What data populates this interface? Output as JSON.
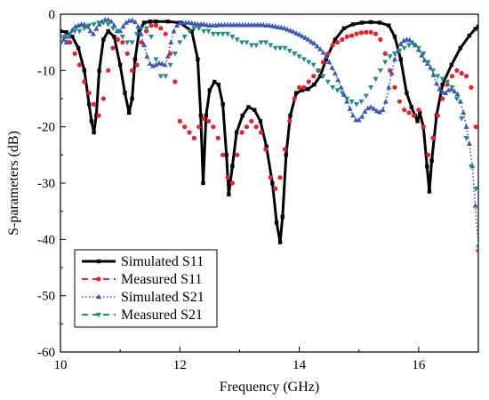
{
  "chart_data": {
    "type": "line",
    "xlabel": "Frequency (GHz)",
    "ylabel": "S-parameters (dB)",
    "xlim": [
      10,
      17
    ],
    "ylim": [
      -60,
      0
    ],
    "xticks": [
      10,
      12,
      14,
      16
    ],
    "yticks": [
      0,
      -10,
      -20,
      -30,
      -40,
      -50,
      -60
    ],
    "grid": false,
    "legend_position": "bottom-left",
    "series": [
      {
        "name": "Simulated S11",
        "color": "#000000",
        "style": "solid-square",
        "x": [
          10.0,
          10.1,
          10.2,
          10.3,
          10.4,
          10.48,
          10.52,
          10.56,
          10.6,
          10.65,
          10.72,
          10.8,
          10.9,
          11.0,
          11.08,
          11.15,
          11.2,
          11.25,
          11.32,
          11.4,
          11.5,
          11.6,
          11.8,
          12.0,
          12.2,
          12.3,
          12.35,
          12.39,
          12.44,
          12.5,
          12.58,
          12.65,
          12.72,
          12.78,
          12.82,
          12.88,
          12.95,
          13.05,
          13.15,
          13.25,
          13.35,
          13.45,
          13.55,
          13.62,
          13.68,
          13.72,
          13.78,
          13.85,
          13.95,
          14.05,
          14.15,
          14.25,
          14.35,
          14.45,
          14.6,
          14.75,
          14.9,
          15.05,
          15.2,
          15.35,
          15.5,
          15.6,
          15.7,
          15.8,
          15.88,
          15.94,
          15.98,
          16.02,
          16.08,
          16.14,
          16.18,
          16.22,
          16.3,
          16.4,
          16.55,
          16.7,
          16.85,
          16.95,
          17.0
        ],
        "y": [
          -3,
          -3.2,
          -4,
          -6,
          -10,
          -16,
          -19,
          -21,
          -18,
          -10,
          -4.5,
          -3,
          -4,
          -9,
          -14,
          -17.5,
          -15,
          -8,
          -3,
          -1.5,
          -1.3,
          -1.3,
          -1.3,
          -1.5,
          -3,
          -8,
          -18,
          -30,
          -18,
          -13.5,
          -12,
          -12.5,
          -16,
          -25,
          -32,
          -27,
          -21,
          -18,
          -16.5,
          -17,
          -19,
          -23.5,
          -30,
          -37,
          -40.5,
          -36,
          -25,
          -18,
          -14,
          -13.5,
          -13.3,
          -12.5,
          -11,
          -8,
          -4.5,
          -2.5,
          -1.8,
          -1.5,
          -1.4,
          -1.5,
          -2,
          -4,
          -8,
          -14,
          -16.5,
          -18,
          -19,
          -17.5,
          -20,
          -27,
          -31.5,
          -26,
          -18,
          -12.5,
          -9,
          -6,
          -3.8,
          -2.6,
          -2.2
        ]
      },
      {
        "name": "Measured S11",
        "color": "#e8202a",
        "style": "dashed-circle",
        "x": [
          10.0,
          10.08,
          10.16,
          10.24,
          10.32,
          10.4,
          10.48,
          10.56,
          10.64,
          10.72,
          10.8,
          10.88,
          10.96,
          11.04,
          11.12,
          11.2,
          11.28,
          11.36,
          11.44,
          11.52,
          11.6,
          11.68,
          11.76,
          11.84,
          11.92,
          12.0,
          12.08,
          12.16,
          12.24,
          12.32,
          12.4,
          12.48,
          12.56,
          12.64,
          12.72,
          12.8,
          12.88,
          12.96,
          13.04,
          13.12,
          13.2,
          13.28,
          13.36,
          13.44,
          13.52,
          13.6,
          13.68,
          13.76,
          13.84,
          13.92,
          14.0,
          14.08,
          14.16,
          14.24,
          14.32,
          14.4,
          14.48,
          14.56,
          14.64,
          14.72,
          14.8,
          14.88,
          14.96,
          15.04,
          15.12,
          15.2,
          15.28,
          15.36,
          15.44,
          15.52,
          15.6,
          15.68,
          15.76,
          15.84,
          15.92,
          16.0,
          16.08,
          16.16,
          16.24,
          16.32,
          16.4,
          16.48,
          16.56,
          16.64,
          16.72,
          16.8,
          16.88,
          16.96,
          17.0
        ],
        "y": [
          -5,
          -4,
          -5,
          -7,
          -9,
          -12,
          -14,
          -16,
          -18,
          -15,
          -10,
          -6,
          -4.5,
          -5,
          -7,
          -10,
          -9,
          -5,
          -3,
          -2,
          -2,
          -2.5,
          -3.5,
          -7,
          -12,
          -19,
          -20,
          -21,
          -22,
          -20,
          -18.5,
          -19,
          -20,
          -22,
          -25,
          -29,
          -30,
          -25,
          -21,
          -20,
          -19,
          -20,
          -21,
          -24,
          -29,
          -31,
          -29,
          -24,
          -19,
          -15,
          -13,
          -13,
          -12,
          -11,
          -10,
          -8.5,
          -7,
          -5.5,
          -5,
          -4.5,
          -4,
          -3.8,
          -3.5,
          -3.3,
          -3.2,
          -3.2,
          -3.5,
          -4.5,
          -7,
          -10,
          -13,
          -15.5,
          -17,
          -17.5,
          -18,
          -17,
          -20,
          -25,
          -22,
          -18,
          -15,
          -12.5,
          -11,
          -10,
          -10.5,
          -11,
          -13,
          -20,
          -42
        ]
      },
      {
        "name": "Simulated S21",
        "color": "#3b57b8",
        "style": "dotted-triangle",
        "x": [
          10.0,
          10.05,
          10.1,
          10.15,
          10.2,
          10.25,
          10.3,
          10.35,
          10.4,
          10.45,
          10.5,
          10.55,
          10.6,
          10.65,
          10.7,
          10.75,
          10.8,
          10.85,
          10.9,
          10.95,
          11.0,
          11.05,
          11.1,
          11.15,
          11.2,
          11.25,
          11.3,
          11.35,
          11.4,
          11.45,
          11.5,
          11.55,
          11.6,
          11.65,
          11.7,
          11.75,
          11.8,
          11.85,
          11.9,
          11.95,
          12.0,
          12.05,
          12.1,
          12.15,
          12.2,
          12.25,
          12.3,
          12.35,
          12.4,
          12.45,
          12.5,
          12.55,
          12.6,
          12.65,
          12.7,
          12.75,
          12.8,
          12.85,
          12.9,
          12.95,
          13.0,
          13.05,
          13.1,
          13.15,
          13.2,
          13.25,
          13.3,
          13.35,
          13.4,
          13.45,
          13.5,
          13.55,
          13.6,
          13.65,
          13.7,
          13.75,
          13.8,
          13.85,
          13.9,
          13.95,
          14.0,
          14.05,
          14.1,
          14.15,
          14.2,
          14.25,
          14.3,
          14.35,
          14.4,
          14.45,
          14.5,
          14.55,
          14.6,
          14.65,
          14.7,
          14.75,
          14.8,
          14.85,
          14.9,
          14.95,
          15.0,
          15.05,
          15.1,
          15.15,
          15.2,
          15.25,
          15.3,
          15.35,
          15.4,
          15.45,
          15.5,
          15.55,
          15.6,
          15.65,
          15.7,
          15.75,
          15.8,
          15.85,
          15.9,
          15.95,
          16.0,
          16.05,
          16.1,
          16.15,
          16.2,
          16.25,
          16.3,
          16.35,
          16.4,
          16.45,
          16.5,
          16.55,
          16.6,
          16.65,
          16.7,
          16.75,
          16.8,
          16.85,
          16.9,
          16.95,
          17.0
        ],
        "y": [
          -3.8,
          -4.5,
          -5,
          -4,
          -2.8,
          -2.2,
          -2,
          -1.8,
          -1.8,
          -2.2,
          -3,
          -3.5,
          -2.6,
          -1.8,
          -1.3,
          -1,
          -1,
          -1.3,
          -2,
          -3,
          -3,
          -2.2,
          -1.5,
          -1.2,
          -1.1,
          -1.4,
          -2.2,
          -3.5,
          -5.5,
          -7.5,
          -8.8,
          -9.2,
          -9,
          -8.7,
          -8.8,
          -9,
          -7.5,
          -5,
          -3,
          -2,
          -1.6,
          -1.5,
          -1.5,
          -1.5,
          -1.6,
          -1.7,
          -1.8,
          -1.8,
          -1.8,
          -1.9,
          -2,
          -2,
          -2,
          -1.9,
          -1.9,
          -1.9,
          -1.9,
          -1.9,
          -1.9,
          -1.9,
          -1.9,
          -1.9,
          -1.9,
          -1.9,
          -1.9,
          -1.9,
          -1.9,
          -1.9,
          -1.9,
          -2,
          -2,
          -2.1,
          -2.2,
          -2.3,
          -2.4,
          -2.5,
          -2.7,
          -2.9,
          -3.1,
          -3.4,
          -3.6,
          -3.9,
          -4.2,
          -4.5,
          -4.9,
          -5.2,
          -5.7,
          -6.2,
          -6.8,
          -7.5,
          -8.5,
          -9.5,
          -10.5,
          -11.7,
          -13,
          -14.3,
          -15.5,
          -16.8,
          -18,
          -18.8,
          -18.8,
          -18.2,
          -17.3,
          -16.7,
          -16.5,
          -16.8,
          -17.2,
          -17.4,
          -17,
          -15.5,
          -13,
          -10.5,
          -8,
          -6.5,
          -5.3,
          -4.7,
          -4.5,
          -4.6,
          -5,
          -5.5,
          -6.3,
          -7.3,
          -8.2,
          -8.8,
          -9.5,
          -10.8,
          -12.3,
          -13.3,
          -13.8,
          -14,
          -13.5,
          -13.3,
          -13.7,
          -14.2,
          -15.5,
          -17.5,
          -20,
          -23,
          -27,
          -34,
          -41
        ]
      },
      {
        "name": "Measured S21",
        "color": "#1e8c87",
        "style": "dashed-triangle-down",
        "x": [
          10.0,
          10.08,
          10.16,
          10.24,
          10.32,
          10.4,
          10.48,
          10.56,
          10.64,
          10.72,
          10.8,
          10.88,
          10.96,
          11.04,
          11.12,
          11.2,
          11.28,
          11.36,
          11.44,
          11.52,
          11.6,
          11.68,
          11.76,
          11.84,
          11.92,
          12.0,
          12.08,
          12.16,
          12.24,
          12.32,
          12.4,
          12.48,
          12.56,
          12.64,
          12.72,
          12.8,
          12.88,
          12.96,
          13.04,
          13.12,
          13.2,
          13.28,
          13.36,
          13.44,
          13.52,
          13.6,
          13.68,
          13.76,
          13.84,
          13.92,
          14.0,
          14.08,
          14.16,
          14.24,
          14.32,
          14.4,
          14.48,
          14.56,
          14.64,
          14.72,
          14.8,
          14.88,
          14.96,
          15.04,
          15.12,
          15.2,
          15.28,
          15.36,
          15.44,
          15.52,
          15.6,
          15.68,
          15.76,
          15.84,
          15.92,
          16.0,
          16.08,
          16.16,
          16.24,
          16.32,
          16.4,
          16.48,
          16.56,
          16.64,
          16.72,
          16.8,
          16.88,
          16.96
        ],
        "y": [
          -5,
          -4,
          -3.5,
          -3,
          -3,
          -2.5,
          -2,
          -1.8,
          -1.5,
          -1.5,
          -1.8,
          -2.5,
          -3,
          -4,
          -5,
          -5,
          -3.5,
          -2.5,
          -2.5,
          -4,
          -8,
          -11,
          -11,
          -9,
          -7,
          -5,
          -4,
          -3,
          -2.5,
          -2.5,
          -3,
          -3,
          -3.5,
          -3.5,
          -3.5,
          -3.5,
          -4,
          -4.5,
          -5,
          -5,
          -5.5,
          -5.5,
          -5,
          -5,
          -5.5,
          -6,
          -6,
          -6,
          -6.5,
          -7,
          -7.5,
          -8,
          -8.5,
          -9,
          -10,
          -11,
          -12,
          -13,
          -13.5,
          -14,
          -15,
          -15.5,
          -16,
          -15.5,
          -14.5,
          -13,
          -11.5,
          -10,
          -8.5,
          -7.5,
          -7,
          -6.5,
          -6,
          -5.5,
          -5.5,
          -6,
          -7,
          -8.5,
          -10,
          -11,
          -11.5,
          -12,
          -13,
          -15,
          -18.5,
          -22,
          -27,
          -31
        ]
      }
    ]
  }
}
